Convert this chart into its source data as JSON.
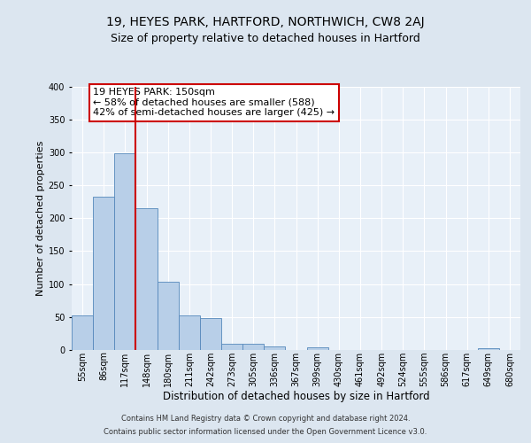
{
  "title": "19, HEYES PARK, HARTFORD, NORTHWICH, CW8 2AJ",
  "subtitle": "Size of property relative to detached houses in Hartford",
  "xlabel": "Distribution of detached houses by size in Hartford",
  "ylabel": "Number of detached properties",
  "categories": [
    "55sqm",
    "86sqm",
    "117sqm",
    "148sqm",
    "180sqm",
    "211sqm",
    "242sqm",
    "273sqm",
    "305sqm",
    "336sqm",
    "367sqm",
    "399sqm",
    "430sqm",
    "461sqm",
    "492sqm",
    "524sqm",
    "555sqm",
    "586sqm",
    "617sqm",
    "649sqm",
    "680sqm"
  ],
  "values": [
    53,
    233,
    298,
    215,
    104,
    52,
    48,
    9,
    9,
    6,
    0,
    4,
    0,
    0,
    0,
    0,
    0,
    0,
    0,
    3,
    0
  ],
  "bar_color": "#b8cfe8",
  "bar_edge_color": "#5588bb",
  "vline_color": "#cc0000",
  "vline_x_idx": 3,
  "annotation_text": "19 HEYES PARK: 150sqm\n← 58% of detached houses are smaller (588)\n42% of semi-detached houses are larger (425) →",
  "annotation_box_facecolor": "#ffffff",
  "annotation_box_edgecolor": "#cc0000",
  "ylim": [
    0,
    400
  ],
  "yticks": [
    0,
    50,
    100,
    150,
    200,
    250,
    300,
    350,
    400
  ],
  "footer_line1": "Contains HM Land Registry data © Crown copyright and database right 2024.",
  "footer_line2": "Contains public sector information licensed under the Open Government Licence v3.0.",
  "bg_color": "#dce6f0",
  "plot_bg_color": "#e8f0f8",
  "title_fontsize": 10,
  "subtitle_fontsize": 9,
  "ylabel_fontsize": 8,
  "xlabel_fontsize": 8.5,
  "tick_fontsize": 7,
  "footer_fontsize": 6,
  "annot_fontsize": 8
}
